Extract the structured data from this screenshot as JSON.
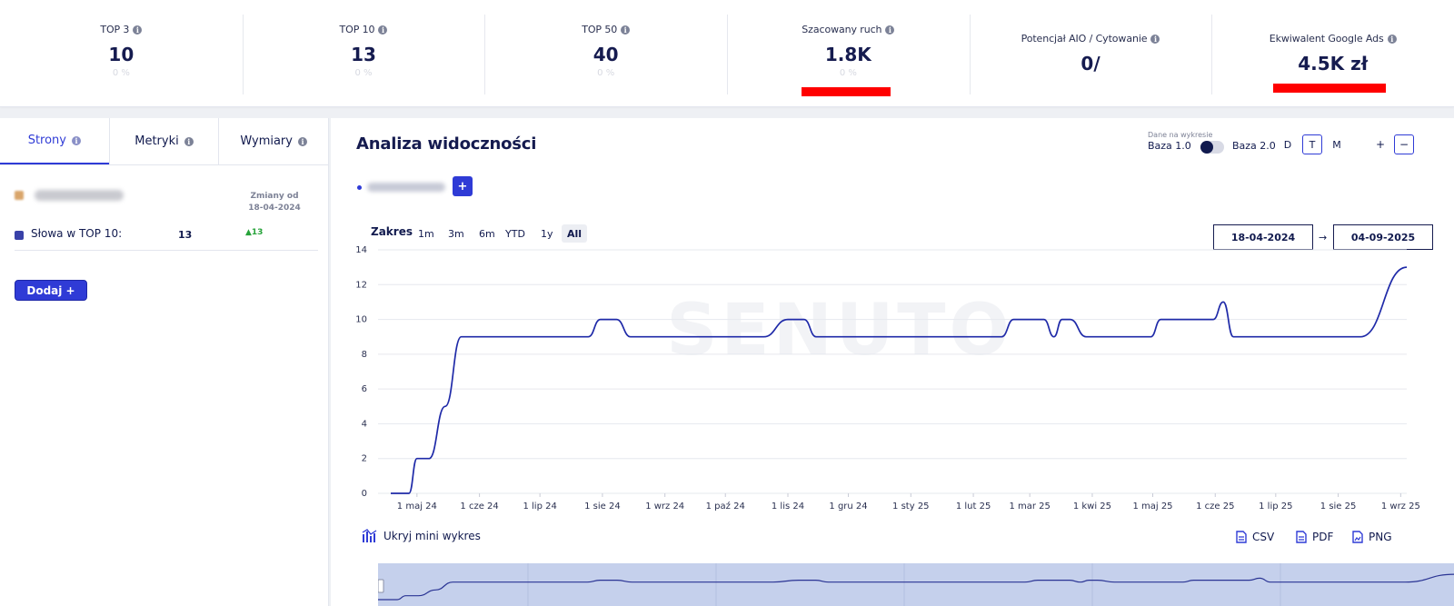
{
  "kpis": [
    {
      "label": "TOP 3",
      "value": "10",
      "change": "0 %"
    },
    {
      "label": "TOP 10",
      "value": "13",
      "change": "0 %"
    },
    {
      "label": "TOP 50",
      "value": "40",
      "change": "0 %"
    },
    {
      "label": "Szacowany ruch",
      "value": "1.8K",
      "change": "0 %"
    },
    {
      "label": "Potencjał AIO / Cytowanie",
      "value": "0/",
      "change": ""
    },
    {
      "label": "Ekwiwalent Google Ads",
      "value": "4.5K zł",
      "change": ""
    }
  ],
  "left": {
    "tabs": [
      {
        "label": "Strony",
        "active": true
      },
      {
        "label": "Metryki",
        "active": false
      },
      {
        "label": "Wymiary",
        "active": false
      }
    ],
    "changes_since_label": "Zmiany od",
    "changes_since_date": "18-04-2024",
    "row": {
      "label": "Słowa w TOP 10:",
      "value": "13",
      "delta": "▲13"
    },
    "add_button": "Dodaj +"
  },
  "panel": {
    "title": "Analiza widoczności",
    "data_on_chart": "Dane na wykresie",
    "baza1": "Baza 1.0",
    "baza2": "Baza 2.0",
    "granularity": [
      "D",
      "T",
      "M"
    ],
    "granularity_selected": "T",
    "zoom_in": "+",
    "zoom_out": "−",
    "legend_add": "+",
    "range_label": "Zakres",
    "ranges": [
      "1m",
      "3m",
      "6m",
      "YTD",
      "1y",
      "All"
    ],
    "range_selected": "All",
    "date_from": "18-04-2024",
    "date_arrow": "→",
    "date_to": "04-09-2025",
    "mini_toggle": "Ukryj mini wykres",
    "exports": [
      "CSV",
      "PDF",
      "PNG"
    ],
    "watermark": "SENUTO"
  },
  "colors": {
    "accent": "#2f3bd6",
    "navy": "#151b4f",
    "line": "#1f2aa8",
    "positive": "#27a33a",
    "redaction": "#ff0000"
  },
  "chart_data": {
    "type": "line",
    "ylim": [
      0,
      14
    ],
    "yticks": [
      0,
      2,
      4,
      6,
      8,
      10,
      12,
      14
    ],
    "xlabels": [
      "1 maj 24",
      "1 cze 24",
      "1 lip 24",
      "1 sie 24",
      "1 wrz 24",
      "1 paź 24",
      "1 lis 24",
      "1 gru 24",
      "1 sty 25",
      "1 lut 25",
      "1 mar 25",
      "1 kwi 25",
      "1 maj 25",
      "1 cze 25",
      "1 lip 25",
      "1 sie 25",
      "1 wrz 25"
    ],
    "series": [
      {
        "x": [
          "2024-04-18",
          "2024-04-27",
          "2024-05-01",
          "2024-05-07",
          "2024-05-15",
          "2024-05-23",
          "2024-06-30",
          "2024-07-25",
          "2024-07-31",
          "2024-08-08",
          "2024-08-15",
          "2024-09-20",
          "2024-10-20",
          "2024-11-01",
          "2024-11-09",
          "2024-11-15",
          "2024-12-20",
          "2025-01-20",
          "2025-02-15",
          "2025-02-21",
          "2025-03-08",
          "2025-03-13",
          "2025-03-17",
          "2025-03-21",
          "2025-03-29",
          "2025-04-03",
          "2025-04-20",
          "2025-04-30",
          "2025-05-05",
          "2025-05-20",
          "2025-05-31",
          "2025-06-05",
          "2025-06-10",
          "2025-06-20",
          "2025-07-31",
          "2025-08-12",
          "2025-09-04"
        ],
        "y": [
          0,
          0,
          2,
          2,
          5,
          9,
          9,
          9,
          10,
          10,
          9,
          9,
          9,
          10,
          10,
          9,
          9,
          9,
          9,
          10,
          10,
          9,
          10,
          10,
          9,
          9,
          9,
          9,
          10,
          10,
          10,
          11,
          9,
          9,
          9,
          9,
          13
        ]
      }
    ]
  }
}
